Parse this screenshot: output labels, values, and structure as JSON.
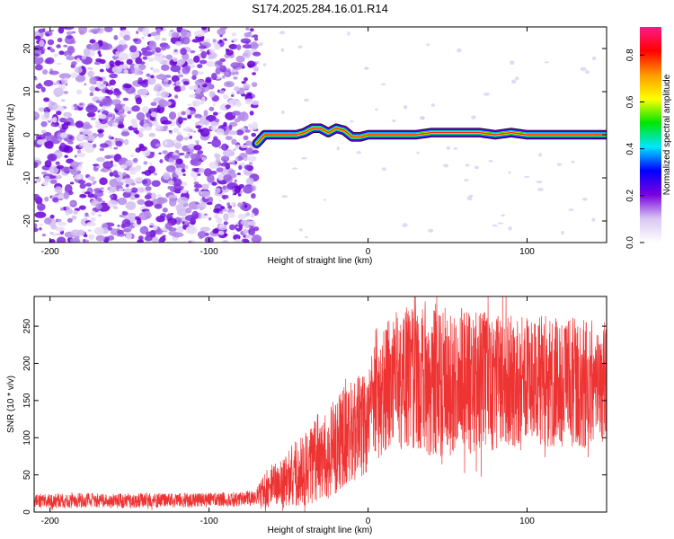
{
  "title": "S174.2025.284.16.01.R14",
  "chart_data": [
    {
      "type": "heatmap",
      "xlabel": "Height of straight line (km)",
      "ylabel": "Frequency (Hz)",
      "xlim": [
        -210,
        150
      ],
      "ylim": [
        -25,
        25
      ],
      "xticks": [
        -200,
        -100,
        0,
        100
      ],
      "yticks": [
        -20,
        -10,
        0,
        10,
        20
      ],
      "grid": false,
      "colorbar": {
        "label": "Normalized spectral amplitude",
        "range": [
          0,
          0.92
        ],
        "ticks": [
          "0.0",
          "0.2",
          "0.4",
          "0.6",
          "0.8"
        ],
        "tick_values": [
          0.0,
          0.2,
          0.4,
          0.6,
          0.8
        ],
        "colors": [
          "#ffffff",
          "#d9c6f2",
          "#7a00e0",
          "#0000ff",
          "#00e6ff",
          "#00e600",
          "#ffff00",
          "#ff9900",
          "#ff0000",
          "#ff1a8c"
        ]
      },
      "noise_region": {
        "x_range": [
          -210,
          -70
        ],
        "y_range": [
          -25,
          25
        ]
      },
      "signal_ridge": {
        "x": [
          -70,
          -65,
          -60,
          -55,
          -50,
          -45,
          -40,
          -35,
          -30,
          -25,
          -20,
          -15,
          -10,
          -5,
          0,
          10,
          20,
          30,
          40,
          50,
          60,
          70,
          80,
          90,
          100,
          110,
          120,
          130,
          140,
          150
        ],
        "frequency": [
          -2,
          0,
          0,
          0,
          0,
          0,
          0.5,
          1.5,
          1.5,
          0.5,
          1.5,
          1,
          -0.5,
          -0.5,
          0,
          0,
          0,
          0,
          0.5,
          0.5,
          0.5,
          0.5,
          0,
          0.5,
          0,
          0,
          0,
          0,
          0,
          0
        ]
      }
    },
    {
      "type": "line",
      "xlabel": "Height of straight line (km)",
      "ylabel": "SNR (10 * v/v)",
      "xlim": [
        -210,
        150
      ],
      "ylim": [
        0,
        290
      ],
      "xticks": [
        -200,
        -100,
        0,
        100
      ],
      "yticks": [
        0,
        50,
        100,
        150,
        200,
        250
      ],
      "grid": false,
      "series": [
        {
          "color": "#ee3333",
          "x": [
            -210,
            -190,
            -170,
            -150,
            -130,
            -110,
            -90,
            -80,
            -70,
            -65,
            -60,
            -55,
            -50,
            -45,
            -40,
            -35,
            -30,
            -25,
            -20,
            -15,
            -10,
            -5,
            0,
            5,
            10,
            15,
            20,
            25,
            30,
            35,
            40,
            50,
            60,
            70,
            80,
            90,
            100,
            110,
            120,
            130,
            140,
            150
          ],
          "mean": [
            15,
            15,
            16,
            15,
            16,
            16,
            17,
            17,
            20,
            28,
            35,
            40,
            45,
            52,
            58,
            65,
            72,
            80,
            90,
            100,
            110,
            118,
            130,
            150,
            160,
            175,
            180,
            178,
            178,
            180,
            178,
            175,
            178,
            175,
            176,
            178,
            176,
            175,
            172,
            175,
            172,
            170
          ],
          "spread": [
            10,
            10,
            10,
            10,
            10,
            10,
            10,
            10,
            12,
            28,
            30,
            35,
            40,
            45,
            50,
            55,
            60,
            62,
            65,
            68,
            70,
            72,
            75,
            80,
            85,
            90,
            95,
            100,
            105,
            105,
            105,
            100,
            100,
            95,
            92,
            92,
            90,
            90,
            88,
            88,
            88,
            85
          ]
        }
      ]
    }
  ]
}
